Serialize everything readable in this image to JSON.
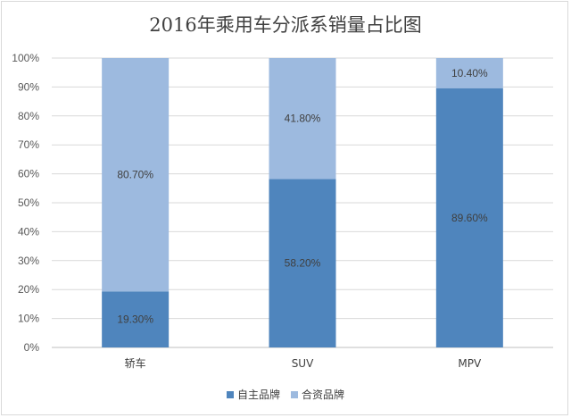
{
  "chart_data": {
    "type": "bar",
    "stacked": true,
    "title": "2016年乘用车分派系销量占比图",
    "categories": [
      "轿车",
      "SUV",
      "MPV"
    ],
    "series": [
      {
        "name": "自主品牌",
        "values": [
          19.3,
          58.2,
          89.6
        ],
        "labels": [
          "19.30%",
          "58.20%",
          "89.60%"
        ],
        "color": "#4f85bd"
      },
      {
        "name": "合资品牌",
        "values": [
          80.7,
          41.8,
          10.4
        ],
        "labels": [
          "80.70%",
          "41.80%",
          "10.40%"
        ],
        "color": "#9dbadf"
      }
    ],
    "yticks": [
      "0%",
      "10%",
      "20%",
      "30%",
      "40%",
      "50%",
      "60%",
      "70%",
      "80%",
      "90%",
      "100%"
    ],
    "ylim": [
      0,
      100
    ],
    "grid": true,
    "legend_position": "bottom"
  }
}
